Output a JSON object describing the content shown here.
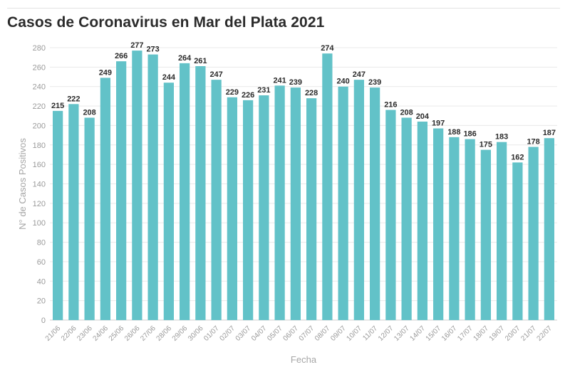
{
  "header": {
    "title": "Casos de Coronavirus en Mar del Plata 2021"
  },
  "colors": {
    "bar": "#62c2c8",
    "grid": "#e9e9e9",
    "axis": "#cfcfcf"
  },
  "chart_data": {
    "type": "bar",
    "title": "Casos de Coronavirus en Mar del Plata 2021",
    "xlabel": "Fecha",
    "ylabel": "N° de Casos Positivos",
    "ylim": [
      0,
      280
    ],
    "ytick_step": 20,
    "grid": true,
    "categories": [
      "21/06",
      "22/06",
      "23/06",
      "24/06",
      "25/06",
      "26/06",
      "27/06",
      "28/06",
      "29/06",
      "30/06",
      "01/07",
      "02/07",
      "03/07",
      "04/07",
      "05/07",
      "06/07",
      "07/07",
      "08/07",
      "09/07",
      "10/07",
      "11/07",
      "12/07",
      "13/07",
      "14/07",
      "15/07",
      "16/07",
      "17/07",
      "18/07",
      "19/07",
      "20/07",
      "21/07",
      "22/07"
    ],
    "values": [
      215,
      222,
      208,
      249,
      266,
      277,
      273,
      244,
      264,
      261,
      247,
      229,
      226,
      231,
      241,
      239,
      228,
      274,
      240,
      247,
      239,
      216,
      208,
      204,
      197,
      188,
      186,
      175,
      183,
      162,
      178,
      187
    ]
  }
}
